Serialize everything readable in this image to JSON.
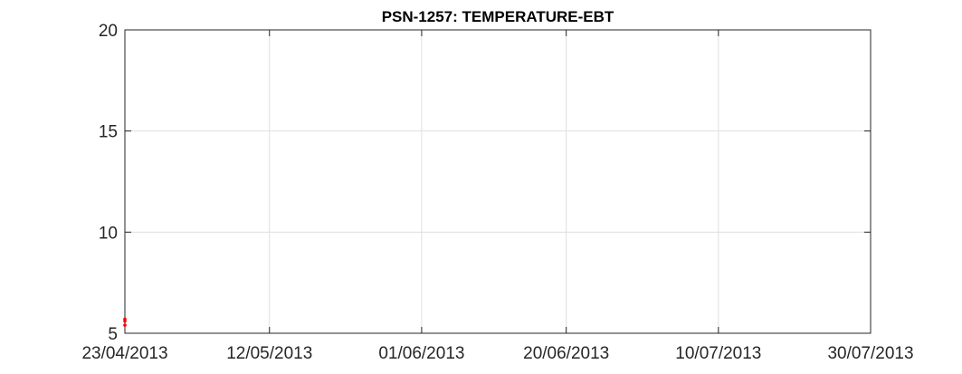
{
  "chart_data": {
    "type": "scatter",
    "title": "PSN-1257: TEMPERATURE-EBT",
    "xlabel": "",
    "ylabel": "",
    "x_axis_kind": "date",
    "xlim": [
      "2013-04-23",
      "2013-07-30"
    ],
    "ylim": [
      5,
      20
    ],
    "x_ticks": [
      {
        "value": "2013-04-23",
        "label": "23/04/2013"
      },
      {
        "value": "2013-05-12",
        "label": "12/05/2013"
      },
      {
        "value": "2013-06-01",
        "label": "01/06/2013"
      },
      {
        "value": "2013-06-20",
        "label": "20/06/2013"
      },
      {
        "value": "2013-07-10",
        "label": "10/07/2013"
      },
      {
        "value": "2013-07-30",
        "label": "30/07/2013"
      }
    ],
    "y_ticks": [
      {
        "value": 5,
        "label": "5"
      },
      {
        "value": 10,
        "label": "10"
      },
      {
        "value": 15,
        "label": "15"
      },
      {
        "value": 20,
        "label": "20"
      }
    ],
    "grid": true,
    "series": [
      {
        "color": "#ff0000",
        "marker": "dot",
        "points": [
          {
            "x": "2013-04-23",
            "y": 5.7
          },
          {
            "x": "2013-04-23",
            "y": 5.6
          },
          {
            "x": "2013-04-23",
            "y": 5.4
          }
        ]
      }
    ]
  }
}
